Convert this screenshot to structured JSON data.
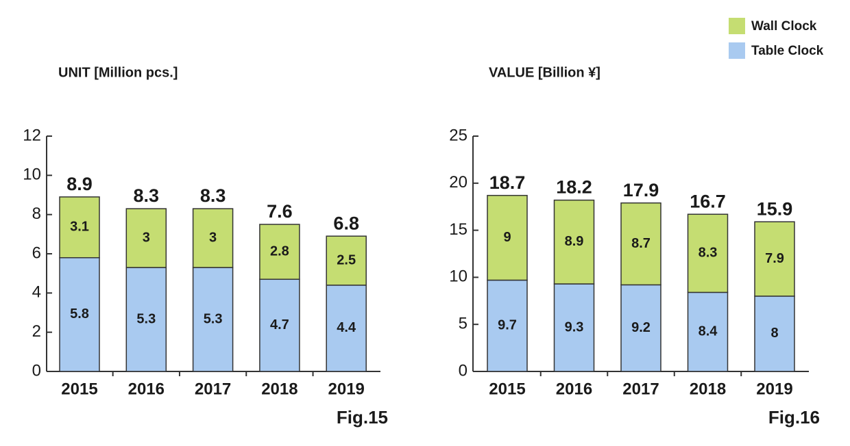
{
  "chart_data": [
    {
      "type": "stacked-bar",
      "title": "UNIT [Million pcs.]",
      "caption": "Fig.15",
      "categories": [
        "2015",
        "2016",
        "2017",
        "2018",
        "2019"
      ],
      "series": [
        {
          "name": "Table Clock",
          "color": "#a9caf0",
          "values": [
            5.8,
            5.3,
            5.3,
            4.7,
            4.4
          ]
        },
        {
          "name": "Wall Clock",
          "color": "#c5dd72",
          "values": [
            3.1,
            3.0,
            3.0,
            2.8,
            2.5
          ]
        }
      ],
      "totals": [
        8.9,
        8.3,
        8.3,
        7.6,
        6.8
      ],
      "ylim": [
        0,
        12
      ],
      "yticks": [
        0,
        2,
        4,
        6,
        8,
        10,
        12
      ]
    },
    {
      "type": "stacked-bar",
      "title": "VALUE [Billion ¥]",
      "caption": "Fig.16",
      "categories": [
        "2015",
        "2016",
        "2017",
        "2018",
        "2019"
      ],
      "series": [
        {
          "name": "Table Clock",
          "color": "#a9caf0",
          "values": [
            9.7,
            9.3,
            9.2,
            8.4,
            8.0
          ]
        },
        {
          "name": "Wall Clock",
          "color": "#c5dd72",
          "values": [
            9.0,
            8.9,
            8.7,
            8.3,
            7.9
          ]
        }
      ],
      "totals": [
        18.7,
        18.2,
        17.9,
        16.7,
        15.9
      ],
      "ylim": [
        0,
        25
      ],
      "yticks": [
        0,
        5,
        10,
        15,
        20,
        25
      ]
    }
  ]
}
